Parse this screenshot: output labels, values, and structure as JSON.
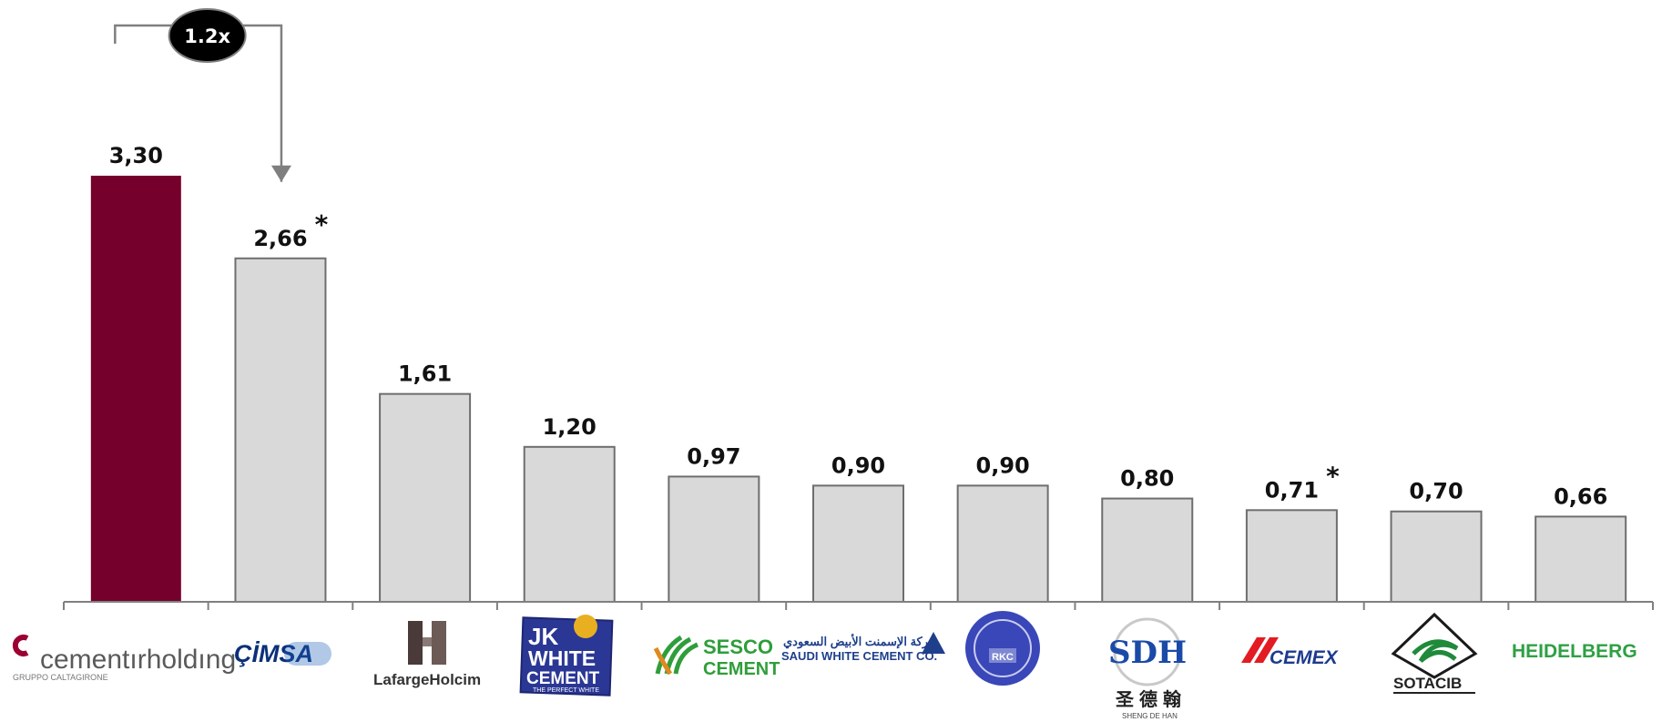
{
  "chart_data": {
    "type": "bar",
    "categories": [
      "cementirholding",
      "ÇİMSA",
      "LafargeHolcim",
      "JK WHITE CEMENT",
      "SESCO CEMENT",
      "SAUDI WHITE CEMENT CO.",
      "RKC",
      "SDH",
      "CEMEX",
      "SOTACIB",
      "HEIDELBERG"
    ],
    "values": [
      3.3,
      2.66,
      1.61,
      1.2,
      0.97,
      0.9,
      0.9,
      0.8,
      0.71,
      0.7,
      0.66
    ],
    "value_labels": [
      "3,30",
      "2,66",
      "1,61",
      "1,20",
      "0,97",
      "0,90",
      "0,90",
      "0,80",
      "0,71",
      "0,70",
      "0,66"
    ],
    "asterisks": [
      false,
      true,
      false,
      false,
      false,
      false,
      false,
      false,
      true,
      false,
      false
    ],
    "highlight_index": 0,
    "ylim": [
      0,
      3.3
    ],
    "grid": false,
    "colors": {
      "highlight": "#75002B",
      "bar": "#D9D9D9",
      "bar_border": "#6E6E6E",
      "axis": "#808080",
      "annotation": "#7F7F7F"
    },
    "annotation": {
      "text": "1.2x",
      "from_index": 0,
      "to_index": 1
    }
  },
  "logos": {
    "cementir_brand": "cementırholdıng",
    "cementir_sub": "GRUPPO CALTAGIRONE",
    "cimsa": "ÇİMSA",
    "lafarge": "LafargeHolcim",
    "jk_line1": "JK",
    "jk_line2": "WHITE",
    "jk_line3": "CEMENT",
    "jk_tag": "THE PERFECT WHITE",
    "sesco_1": "SESCO",
    "sesco_2": "CEMENT",
    "saudi_ar": "شركة الإسمنت الأبيض السعودي",
    "saudi_en": "SAUDI WHITE CEMENT CO.",
    "rkc": "RKC",
    "sdh": "SDH",
    "sdh_cn": "圣德翰",
    "sdh_en": "SHENG DE HAN",
    "cemex": "CEMEX",
    "sotacib": "SOTACIB",
    "heidelberg": "HEIDELBERG"
  }
}
